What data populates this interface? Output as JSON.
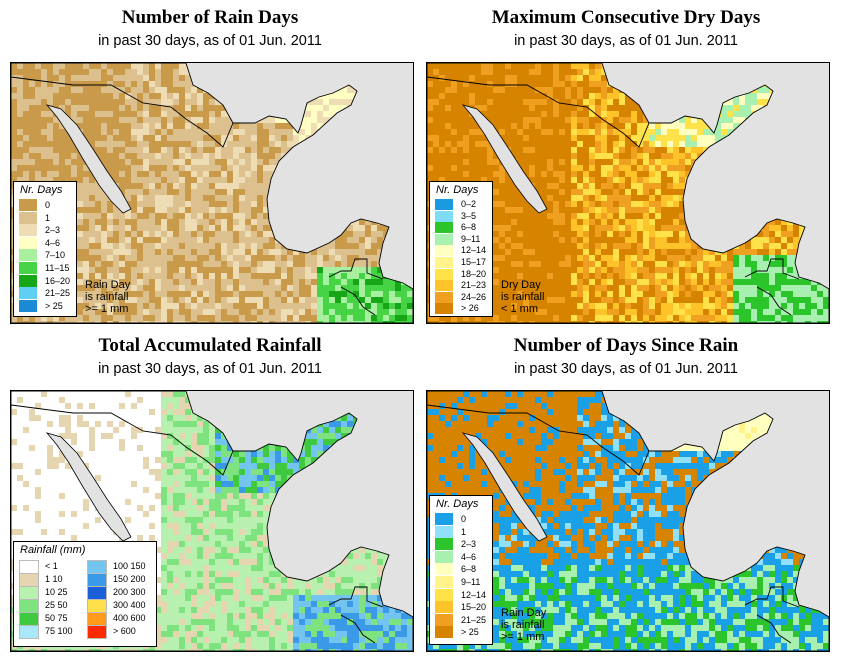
{
  "panels": [
    {
      "title": "Number of Rain Days",
      "subtitle": "in past 30 days, as of  01 Jun. 2011",
      "legend_title": "Nr. Days",
      "legend_items": [
        {
          "label": "0",
          "color": "#c89a4a"
        },
        {
          "label": "1",
          "color": "#dcc18f"
        },
        {
          "label": "2–3",
          "color": "#eedcb5"
        },
        {
          "label": "4–6",
          "color": "#ffffc4"
        },
        {
          "label": "7–10",
          "color": "#a8f0a0"
        },
        {
          "label": "11–15",
          "color": "#46d346"
        },
        {
          "label": "16–20",
          "color": "#17a617"
        },
        {
          "label": "21–25",
          "color": "#5fd0f3"
        },
        {
          "label": "> 25",
          "color": "#1a8ad4"
        }
      ],
      "note": "Rain Day\nis rainfall\n>= 1 mm"
    },
    {
      "title": "Maximum Consecutive Dry Days",
      "subtitle": "in past 30 days, as of  01 Jun. 2011",
      "legend_title": "Nr. Days",
      "legend_items": [
        {
          "label": "0–2",
          "color": "#1a9ae0"
        },
        {
          "label": "3–5",
          "color": "#7fdcf5"
        },
        {
          "label": "6–8",
          "color": "#2bc52b"
        },
        {
          "label": "9–11",
          "color": "#a8f0b0"
        },
        {
          "label": "12–14",
          "color": "#ffffc0"
        },
        {
          "label": "15–17",
          "color": "#fff38a"
        },
        {
          "label": "18–20",
          "color": "#ffe14a"
        },
        {
          "label": "21–23",
          "color": "#ffc32a"
        },
        {
          "label": "24–26",
          "color": "#f0a020"
        },
        {
          "label": "> 26",
          "color": "#d68400"
        }
      ],
      "note": "Dry Day\nis rainfall\n< 1 mm"
    },
    {
      "title": "Total Accumulated Rainfall",
      "subtitle": "in past 30 days, as of  01 Jun. 2011",
      "legend_title": "Rainfall (mm)",
      "legend_items": [
        {
          "label": "< 1",
          "color": "#ffffff"
        },
        {
          "label": "1   10",
          "color": "#e5d5b0"
        },
        {
          "label": "10   25",
          "color": "#b8f0b0"
        },
        {
          "label": "25   50",
          "color": "#7ee27e"
        },
        {
          "label": "50   75",
          "color": "#3ec93e"
        },
        {
          "label": "75   100",
          "color": "#a8e8f8"
        },
        {
          "label": "100   150",
          "color": "#74c4f0"
        },
        {
          "label": "150   200",
          "color": "#3a9ae8"
        },
        {
          "label": "200   300",
          "color": "#1a5fd8"
        },
        {
          "label": "300   400",
          "color": "#ffe04a"
        },
        {
          "label": "400   600",
          "color": "#ff9a1a"
        },
        {
          "label": "> 600",
          "color": "#ff2a00"
        }
      ],
      "note": ""
    },
    {
      "title": "Number of Days Since Rain",
      "subtitle": "in past 30 days, as of  01 Jun. 2011",
      "legend_title": "Nr. Days",
      "legend_items": [
        {
          "label": "0",
          "color": "#1aa0e6"
        },
        {
          "label": "1",
          "color": "#8fe0f8"
        },
        {
          "label": "2–3",
          "color": "#2bc52b"
        },
        {
          "label": "4–6",
          "color": "#a8f0b0"
        },
        {
          "label": "6–8",
          "color": "#ffffc0"
        },
        {
          "label": "9–11",
          "color": "#fff38a"
        },
        {
          "label": "12–14",
          "color": "#ffe14a"
        },
        {
          "label": "15–20",
          "color": "#ffc32a"
        },
        {
          "label": "21–25",
          "color": "#f0a020"
        },
        {
          "label": "> 25",
          "color": "#d68400"
        }
      ],
      "note": "Rain Day\nis rainfall\n>= 1 mm"
    }
  ],
  "map_colors": {
    "ocean": "#e2e2e2",
    "border": "#000000"
  }
}
